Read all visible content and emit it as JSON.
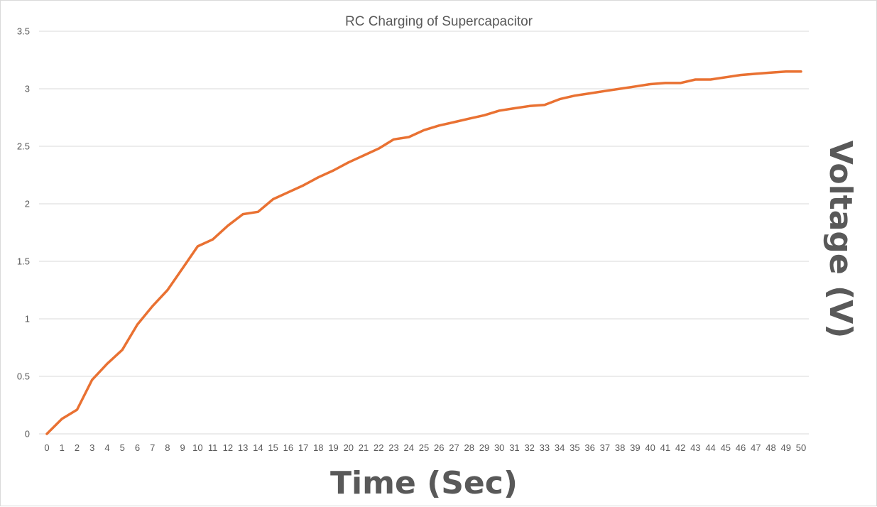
{
  "chart_data": {
    "type": "line",
    "title": "RC Charging of Supercapacitor",
    "xlabel": "Time (Sec)",
    "ylabel": "Voltage (V)",
    "categories": [
      "0",
      "1",
      "2",
      "3",
      "4",
      "5",
      "6",
      "7",
      "8",
      "9",
      "10",
      "11",
      "12",
      "13",
      "14",
      "15",
      "16",
      "17",
      "18",
      "19",
      "20",
      "21",
      "22",
      "23",
      "24",
      "25",
      "26",
      "27",
      "28",
      "29",
      "30",
      "31",
      "32",
      "33",
      "34",
      "35",
      "36",
      "37",
      "38",
      "39",
      "40",
      "41",
      "42",
      "43",
      "44",
      "45",
      "46",
      "47",
      "48",
      "49",
      "50"
    ],
    "series": [
      {
        "values": [
          0,
          0.13,
          0.21,
          0.47,
          0.61,
          0.73,
          0.95,
          1.11,
          1.25,
          1.44,
          1.63,
          1.69,
          1.81,
          1.91,
          1.93,
          2.04,
          2.1,
          2.16,
          2.23,
          2.29,
          2.36,
          2.42,
          2.48,
          2.56,
          2.58,
          2.64,
          2.68,
          2.71,
          2.74,
          2.77,
          2.81,
          2.83,
          2.85,
          2.86,
          2.91,
          2.94,
          2.96,
          2.98,
          3.0,
          3.02,
          3.04,
          3.05,
          3.05,
          3.08,
          3.08,
          3.1,
          3.12,
          3.13,
          3.14,
          3.15,
          3.15
        ],
        "color": "#E97132"
      }
    ],
    "ylim": [
      0,
      3.5
    ],
    "yticks": [
      "0",
      "0.5",
      "1",
      "1.5",
      "2",
      "2.5",
      "3",
      "3.5"
    ],
    "grid": true,
    "legend": "none",
    "colors": {
      "gridline": "#d9d9d9",
      "text": "#595959",
      "border": "#d9d9d9"
    }
  }
}
